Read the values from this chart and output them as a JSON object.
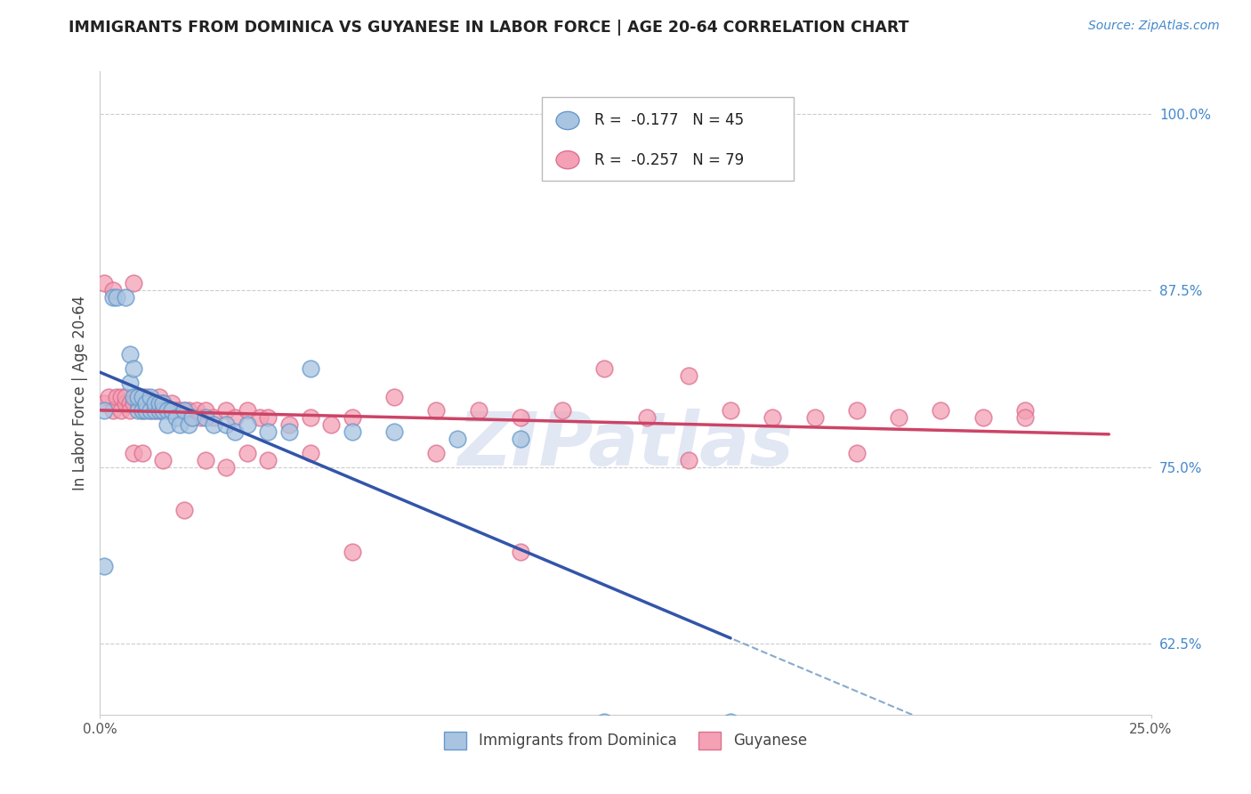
{
  "title": "IMMIGRANTS FROM DOMINICA VS GUYANESE IN LABOR FORCE | AGE 20-64 CORRELATION CHART",
  "source": "Source: ZipAtlas.com",
  "ylabel": "In Labor Force | Age 20-64",
  "ytick_labels": [
    "100.0%",
    "87.5%",
    "75.0%",
    "62.5%"
  ],
  "ytick_values": [
    1.0,
    0.875,
    0.75,
    0.625
  ],
  "xlim": [
    0.0,
    0.25
  ],
  "ylim": [
    0.575,
    1.03
  ],
  "dominica_color": "#a8c4e0",
  "dominica_edge": "#6699cc",
  "guyanese_color": "#f4a0b5",
  "guyanese_edge": "#dd7090",
  "dominica_line_color": "#3355aa",
  "guyanese_line_color": "#cc4466",
  "dominica_dash_color": "#88aacc",
  "legend_r1": "-0.177",
  "legend_n1": "45",
  "legend_r2": "-0.257",
  "legend_n2": "79",
  "watermark": "ZIPatlas",
  "dominica_x": [
    0.001,
    0.003,
    0.004,
    0.006,
    0.007,
    0.007,
    0.008,
    0.008,
    0.009,
    0.009,
    0.01,
    0.01,
    0.011,
    0.011,
    0.012,
    0.012,
    0.013,
    0.013,
    0.014,
    0.014,
    0.015,
    0.015,
    0.016,
    0.016,
    0.017,
    0.018,
    0.019,
    0.02,
    0.021,
    0.022,
    0.025,
    0.027,
    0.03,
    0.032,
    0.035,
    0.04,
    0.045,
    0.05,
    0.06,
    0.07,
    0.085,
    0.1,
    0.12,
    0.15,
    0.001
  ],
  "dominica_y": [
    0.68,
    0.87,
    0.87,
    0.87,
    0.81,
    0.83,
    0.8,
    0.82,
    0.79,
    0.8,
    0.79,
    0.8,
    0.79,
    0.795,
    0.79,
    0.8,
    0.79,
    0.795,
    0.79,
    0.795,
    0.79,
    0.795,
    0.79,
    0.78,
    0.79,
    0.785,
    0.78,
    0.79,
    0.78,
    0.785,
    0.785,
    0.78,
    0.78,
    0.775,
    0.78,
    0.775,
    0.775,
    0.82,
    0.775,
    0.775,
    0.77,
    0.77,
    0.57,
    0.57,
    0.79
  ],
  "guyanese_x": [
    0.001,
    0.002,
    0.003,
    0.004,
    0.005,
    0.005,
    0.006,
    0.006,
    0.007,
    0.007,
    0.008,
    0.008,
    0.009,
    0.009,
    0.01,
    0.01,
    0.011,
    0.011,
    0.012,
    0.012,
    0.013,
    0.013,
    0.014,
    0.014,
    0.015,
    0.015,
    0.016,
    0.017,
    0.018,
    0.019,
    0.02,
    0.021,
    0.022,
    0.023,
    0.024,
    0.025,
    0.027,
    0.03,
    0.032,
    0.035,
    0.038,
    0.04,
    0.045,
    0.05,
    0.055,
    0.06,
    0.07,
    0.08,
    0.09,
    0.1,
    0.11,
    0.12,
    0.13,
    0.14,
    0.15,
    0.16,
    0.17,
    0.18,
    0.19,
    0.2,
    0.21,
    0.22,
    0.001,
    0.003,
    0.008,
    0.01,
    0.015,
    0.02,
    0.025,
    0.03,
    0.035,
    0.04,
    0.05,
    0.06,
    0.08,
    0.1,
    0.14,
    0.18,
    0.22
  ],
  "guyanese_y": [
    0.795,
    0.8,
    0.79,
    0.8,
    0.79,
    0.8,
    0.795,
    0.8,
    0.795,
    0.79,
    0.795,
    0.88,
    0.795,
    0.8,
    0.795,
    0.79,
    0.795,
    0.8,
    0.79,
    0.795,
    0.79,
    0.795,
    0.79,
    0.8,
    0.79,
    0.795,
    0.79,
    0.795,
    0.79,
    0.79,
    0.79,
    0.79,
    0.785,
    0.79,
    0.785,
    0.79,
    0.785,
    0.79,
    0.785,
    0.79,
    0.785,
    0.785,
    0.78,
    0.785,
    0.78,
    0.785,
    0.8,
    0.79,
    0.79,
    0.785,
    0.79,
    0.82,
    0.785,
    0.815,
    0.79,
    0.785,
    0.785,
    0.79,
    0.785,
    0.79,
    0.785,
    0.79,
    0.88,
    0.875,
    0.76,
    0.76,
    0.755,
    0.72,
    0.755,
    0.75,
    0.76,
    0.755,
    0.76,
    0.69,
    0.76,
    0.69,
    0.755,
    0.76,
    0.785
  ]
}
